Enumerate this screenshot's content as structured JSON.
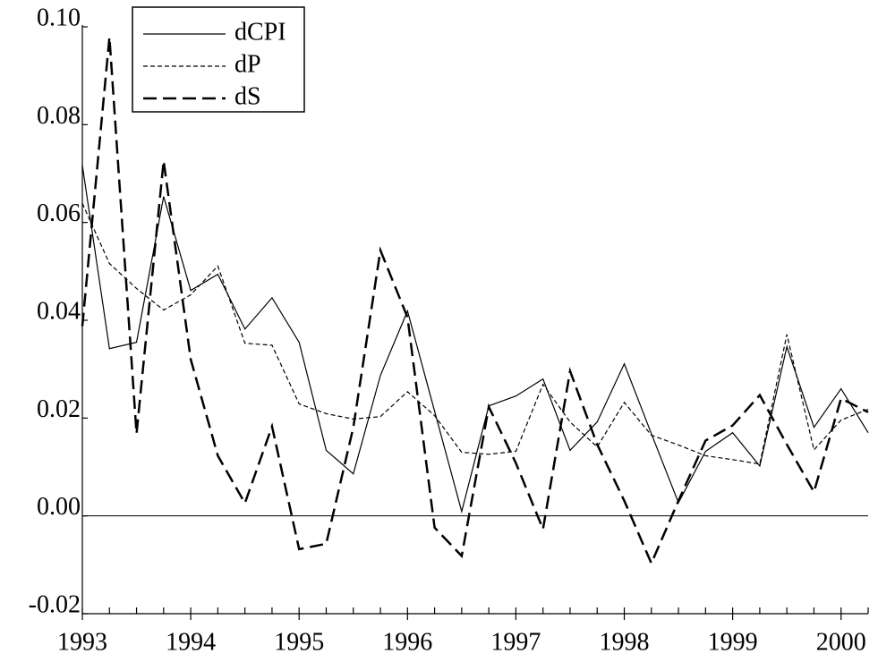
{
  "chart_data": {
    "type": "line",
    "x": [
      1993,
      1993.25,
      1993.5,
      1993.75,
      1994,
      1994.25,
      1994.5,
      1994.75,
      1995,
      1995.25,
      1995.5,
      1995.75,
      1996,
      1996.25,
      1996.5,
      1996.75,
      1997,
      1997.25,
      1997.5,
      1997.75,
      1998,
      1998.25,
      1998.5,
      1998.75,
      1999,
      1999.25,
      1999.5,
      1999.75,
      2000,
      2000.25
    ],
    "series": [
      {
        "name": "dCPI",
        "color": "#000000",
        "style": "solid",
        "values": [
          0.0717,
          0.0342,
          0.0355,
          0.0653,
          0.0461,
          0.0494,
          0.0382,
          0.0446,
          0.0355,
          0.0134,
          0.0086,
          0.0287,
          0.0419,
          0.0214,
          0.0009,
          0.0225,
          0.0245,
          0.028,
          0.0134,
          0.0192,
          0.0311,
          0.0168,
          0.0027,
          0.0132,
          0.017,
          0.0102,
          0.0346,
          0.0181,
          0.026,
          0.017
        ]
      },
      {
        "name": "dP",
        "color": "#000000",
        "style": "short-dash",
        "values": [
          0.0639,
          0.0516,
          0.0465,
          0.0421,
          0.0452,
          0.0511,
          0.0353,
          0.0349,
          0.0229,
          0.0209,
          0.0198,
          0.0203,
          0.0254,
          0.0205,
          0.013,
          0.0126,
          0.0132,
          0.0269,
          0.0192,
          0.0141,
          0.0232,
          0.0165,
          0.0145,
          0.0123,
          0.0115,
          0.0106,
          0.0371,
          0.0135,
          0.0196,
          0.0218
        ]
      },
      {
        "name": "dS",
        "color": "#000000",
        "style": "long-dash",
        "values": [
          0.0388,
          0.0979,
          0.0168,
          0.0726,
          0.032,
          0.0123,
          0.0026,
          0.0183,
          -0.0068,
          -0.0057,
          0.0181,
          0.0543,
          0.0406,
          -0.0024,
          -0.0082,
          0.0223,
          0.0108,
          -0.0027,
          0.0296,
          0.0146,
          0.0031,
          -0.0097,
          0.0031,
          0.0154,
          0.0185,
          0.0247,
          0.0146,
          0.0049,
          0.024,
          0.0212
        ]
      }
    ],
    "xlim": [
      1993,
      2000.25
    ],
    "xticks": [
      1993,
      1994,
      1995,
      1996,
      1997,
      1998,
      1999,
      2000
    ],
    "ylim": [
      -0.02,
      0.1
    ],
    "yticks": [
      {
        "value": -0.02,
        "label": "-0.02"
      },
      {
        "value": 0,
        "label": "0.00"
      },
      {
        "value": 0.02,
        "label": "0.02"
      },
      {
        "value": 0.04,
        "label": "0.04"
      },
      {
        "value": 0.06,
        "label": "0.06"
      },
      {
        "value": 0.08,
        "label": "0.08"
      },
      {
        "value": 0.1,
        "label": "0.10"
      }
    ],
    "hline": 0,
    "legend": "top-left"
  }
}
